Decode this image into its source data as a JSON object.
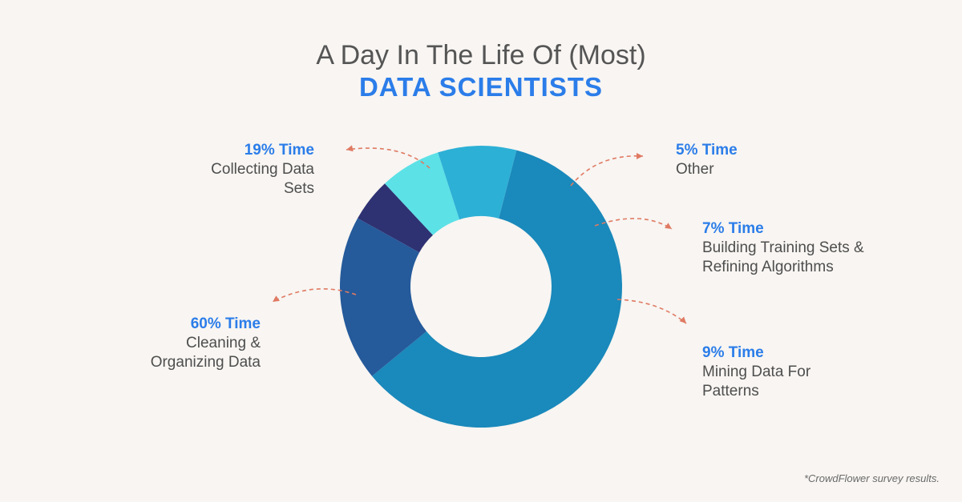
{
  "title": {
    "main": "A Day In The Life Of (Most)",
    "sub": "DATA SCIENTISTS"
  },
  "chart_data": {
    "type": "pie",
    "donut": true,
    "title": "A Day In The Life Of (Most) DATA SCIENTISTS",
    "slices": [
      {
        "key": "other",
        "value": 5,
        "label_pct": "5% Time",
        "label_desc": "Other",
        "color": "#2e3272",
        "side": "right"
      },
      {
        "key": "building",
        "value": 7,
        "label_pct": "7% Time",
        "label_desc": "Building Training Sets & Refining Algorithms",
        "color": "#5ce1e6",
        "side": "right"
      },
      {
        "key": "mining",
        "value": 9,
        "label_pct": "9% Time",
        "label_desc": "Mining Data For Patterns",
        "color": "#2db0d6",
        "side": "right"
      },
      {
        "key": "cleaning",
        "value": 60,
        "label_pct": "60% Time",
        "label_desc": "Cleaning & Organizing Data",
        "color": "#1a89bb",
        "side": "left"
      },
      {
        "key": "collecting",
        "value": 19,
        "label_pct": "19% Time",
        "label_desc": "Collecting Data Sets",
        "color": "#255a9b",
        "side": "left"
      }
    ],
    "arrow_color": "#e07a63"
  },
  "footnote": "*CrowdFlower survey results."
}
